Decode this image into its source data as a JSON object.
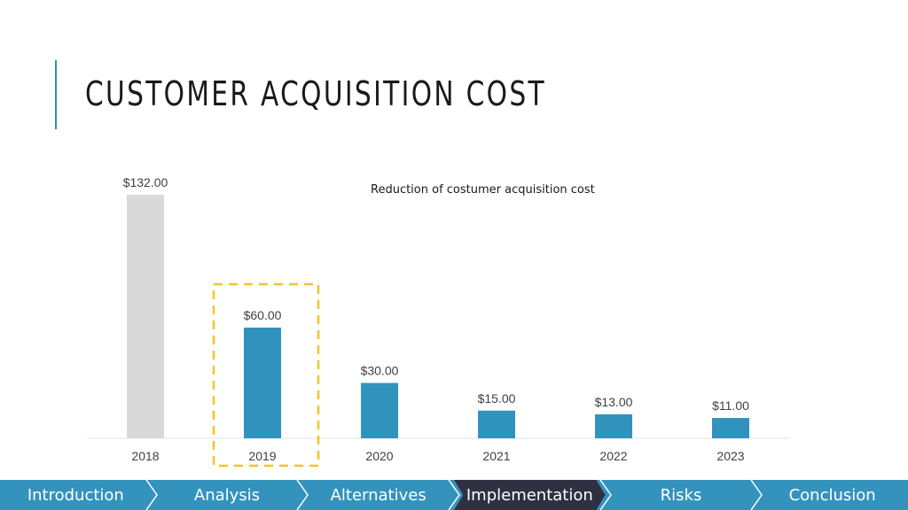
{
  "slide": {
    "title": "CUSTOMER ACQUISITION COST"
  },
  "chart_note": "Reduction of costumer acquisition cost",
  "colors": {
    "accent": "#2e8fb8",
    "bar": "#3093bd",
    "bar_muted": "#d9d9d9",
    "highlight": "#f4c427",
    "nav_bg": "#3493bd",
    "nav_active": "#2f3142"
  },
  "chart_data": {
    "type": "bar",
    "categories": [
      "2018",
      "2019",
      "2020",
      "2021",
      "2022",
      "2023"
    ],
    "values": [
      132,
      60,
      30,
      15,
      13,
      11
    ],
    "data_labels": [
      "$132.00",
      "$60.00",
      "$30.00",
      "$15.00",
      "$13.00",
      "$11.00"
    ],
    "ylim": [
      0,
      132
    ],
    "muted_categories": [
      "2018"
    ],
    "highlighted_category": "2019",
    "grid": false,
    "y_axis_visible": false
  },
  "nav": {
    "items": [
      {
        "label": "Introduction",
        "active": false
      },
      {
        "label": "Analysis",
        "active": false
      },
      {
        "label": "Alternatives",
        "active": false
      },
      {
        "label": "Implementation",
        "active": true
      },
      {
        "label": "Risks",
        "active": false
      },
      {
        "label": "Conclusion",
        "active": false
      }
    ]
  }
}
